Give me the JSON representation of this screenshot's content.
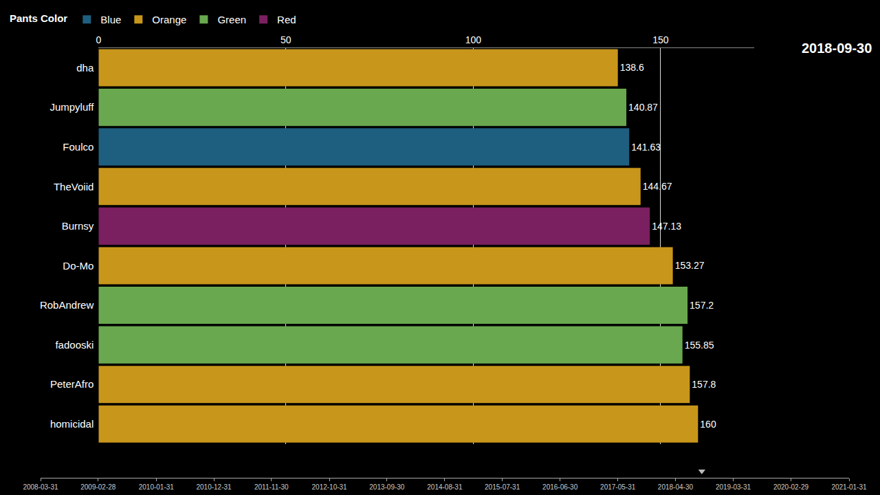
{
  "chart_data": [
    {
      "type": "bar",
      "orientation": "horizontal",
      "annotation": "2018-09-30",
      "legend_title": "Pants Color",
      "legend": "top left",
      "categories": [
        "dha",
        "Jumpyluff",
        "Foulco",
        "TheVoiid",
        "Burnsy",
        "Do-Mo",
        "RobAndrew",
        "fadooski",
        "PeterAfro",
        "homicidal"
      ],
      "series": [
        {
          "name": "Blue",
          "color": "#1e5f80",
          "values": [
            null,
            null,
            141.63,
            null,
            null,
            null,
            null,
            null,
            null,
            null
          ]
        },
        {
          "name": "Orange",
          "color": "#c8961a",
          "values": [
            138.6,
            null,
            null,
            144.67,
            null,
            153.27,
            null,
            null,
            157.8,
            160
          ]
        },
        {
          "name": "Green",
          "color": "#6aa84f",
          "values": [
            null,
            140.87,
            null,
            null,
            null,
            null,
            157.2,
            155.85,
            null,
            null
          ]
        },
        {
          "name": "Red",
          "color": "#7a2060",
          "values": [
            null,
            null,
            null,
            null,
            147.13,
            null,
            null,
            null,
            null,
            null
          ]
        }
      ],
      "xlim": [
        0,
        175
      ],
      "xticks": [
        0,
        50,
        100,
        150
      ],
      "grid": true,
      "stacked": false,
      "data_labels": true
    },
    {
      "type": "scatter",
      "x": [
        "2018-09-30"
      ],
      "marker": "triangle-down",
      "color": "#bbbbbb",
      "xlim": [
        "2008-03-31",
        "2021-01-31"
      ],
      "xticks": [
        "2008-03-31",
        "2009-02-28",
        "2010-01-31",
        "2010-12-31",
        "2011-11-30",
        "2012-10-31",
        "2013-09-30",
        "2014-08-31",
        "2015-07-31",
        "2016-06-30",
        "2017-05-31",
        "2018-04-30",
        "2019-03-31",
        "2020-02-29",
        "2021-01-31"
      ],
      "tick_labels": "x"
    }
  ]
}
